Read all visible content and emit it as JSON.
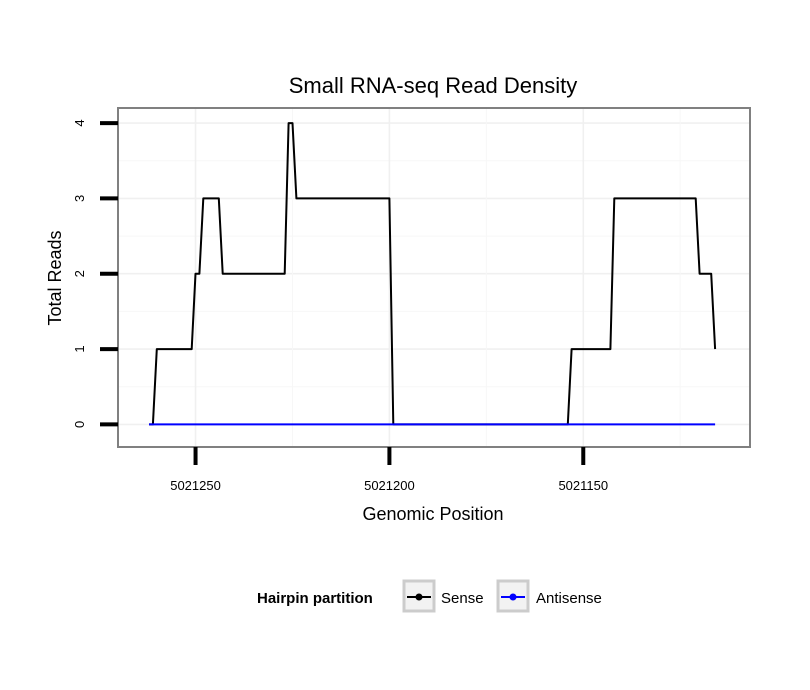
{
  "chart_data": {
    "type": "line",
    "title": "Small RNA-seq Read Density",
    "xlabel": "Genomic Position",
    "ylabel": "Total Reads",
    "x_reversed": true,
    "xlim": [
      5021270,
      5021107
    ],
    "ylim": [
      -0.3,
      4.2
    ],
    "xticks": [
      5021250,
      5021200,
      5021150
    ],
    "xtick_labels": [
      "5021250",
      "5021200",
      "5021150"
    ],
    "yticks": [
      0,
      1,
      2,
      3,
      4
    ],
    "ytick_labels": [
      "0",
      "1",
      "2",
      "3",
      "4"
    ],
    "grid": true,
    "legend": {
      "title": "Hairpin partition",
      "position": "bottom",
      "entries": [
        "Sense",
        "Antisense"
      ]
    },
    "series": [
      {
        "name": "Sense",
        "color": "#000000",
        "x": [
          5021262,
          5021261,
          5021260,
          5021251,
          5021250,
          5021249,
          5021248,
          5021244,
          5021243,
          5021227,
          5021226,
          5021225,
          5021224,
          5021223,
          5021200,
          5021199,
          5021154,
          5021153,
          5021143,
          5021142,
          5021121,
          5021120,
          5021117,
          5021116
        ],
        "y": [
          0,
          0,
          1,
          1,
          2,
          2,
          3,
          3,
          2,
          2,
          4,
          4,
          3,
          3,
          3,
          0,
          0,
          1,
          1,
          3,
          3,
          2,
          2,
          1
        ]
      },
      {
        "name": "Antisense",
        "color": "#0000ff",
        "x": [
          5021262,
          5021116
        ],
        "y": [
          0,
          0
        ]
      }
    ]
  }
}
